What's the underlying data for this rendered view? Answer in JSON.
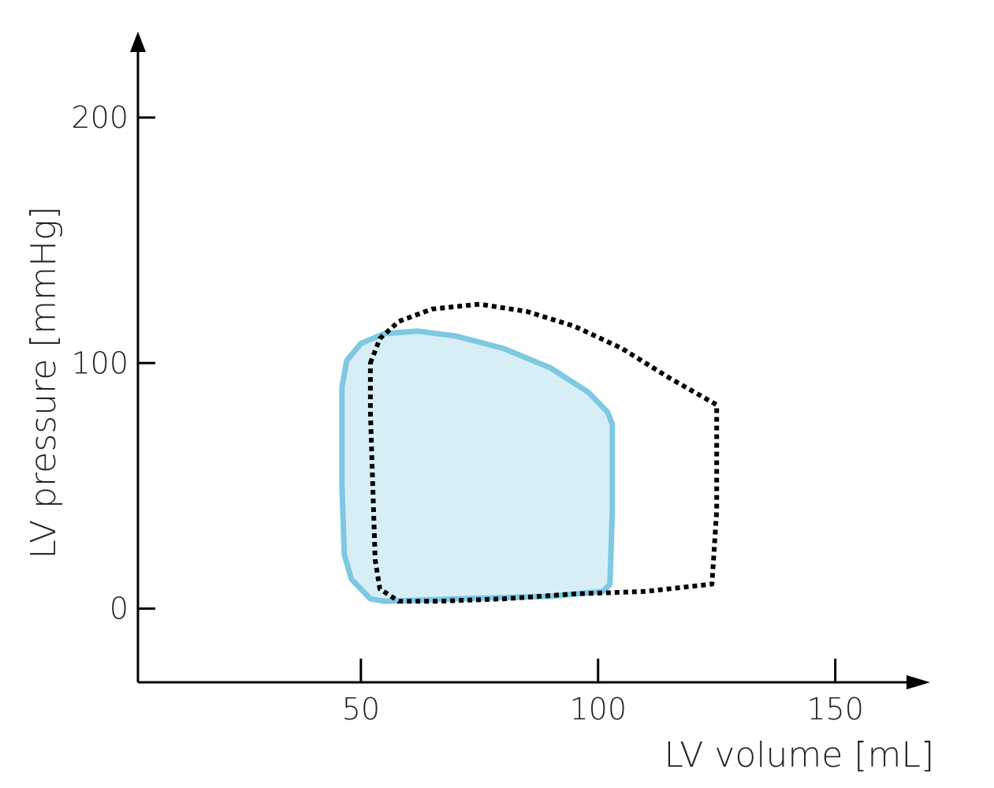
{
  "chart_data": {
    "type": "line",
    "title": "",
    "xlabel": "LV volume [mL]",
    "ylabel": "LV pressure [mmHg]",
    "xlim": [
      3,
      170
    ],
    "ylim": [
      -30,
      235
    ],
    "x_ticks": [
      50,
      100,
      150
    ],
    "y_ticks": [
      0,
      100,
      200
    ],
    "grid": false,
    "series": [
      {
        "style": "solid-filled",
        "stroke_color": "#7ec8e3",
        "fill_color": "#d8eef7",
        "points": [
          [
            46,
            90
          ],
          [
            47,
            101
          ],
          [
            50,
            108
          ],
          [
            55,
            112
          ],
          [
            62,
            113
          ],
          [
            70,
            111
          ],
          [
            80,
            106
          ],
          [
            90,
            98
          ],
          [
            98,
            88
          ],
          [
            102,
            80
          ],
          [
            103,
            75
          ],
          [
            103,
            40
          ],
          [
            102.5,
            10
          ],
          [
            101,
            7
          ],
          [
            90,
            5
          ],
          [
            70,
            4
          ],
          [
            55,
            3
          ],
          [
            52,
            4
          ],
          [
            48,
            12
          ],
          [
            46.5,
            22
          ],
          [
            46,
            50
          ],
          [
            46,
            90
          ]
        ]
      },
      {
        "style": "dotted",
        "stroke_color": "#000000",
        "points": [
          [
            52,
            100
          ],
          [
            54,
            110
          ],
          [
            58,
            117
          ],
          [
            65,
            122
          ],
          [
            75,
            124
          ],
          [
            85,
            121
          ],
          [
            95,
            115
          ],
          [
            105,
            106
          ],
          [
            115,
            94
          ],
          [
            125,
            83
          ],
          [
            125,
            65
          ],
          [
            125,
            40
          ],
          [
            124,
            10
          ],
          [
            110,
            7
          ],
          [
            95,
            6
          ],
          [
            80,
            4
          ],
          [
            66,
            3
          ],
          [
            58,
            3
          ],
          [
            54,
            8
          ],
          [
            53,
            20
          ],
          [
            52.5,
            50
          ],
          [
            52,
            80
          ],
          [
            52,
            100
          ]
        ]
      }
    ]
  }
}
